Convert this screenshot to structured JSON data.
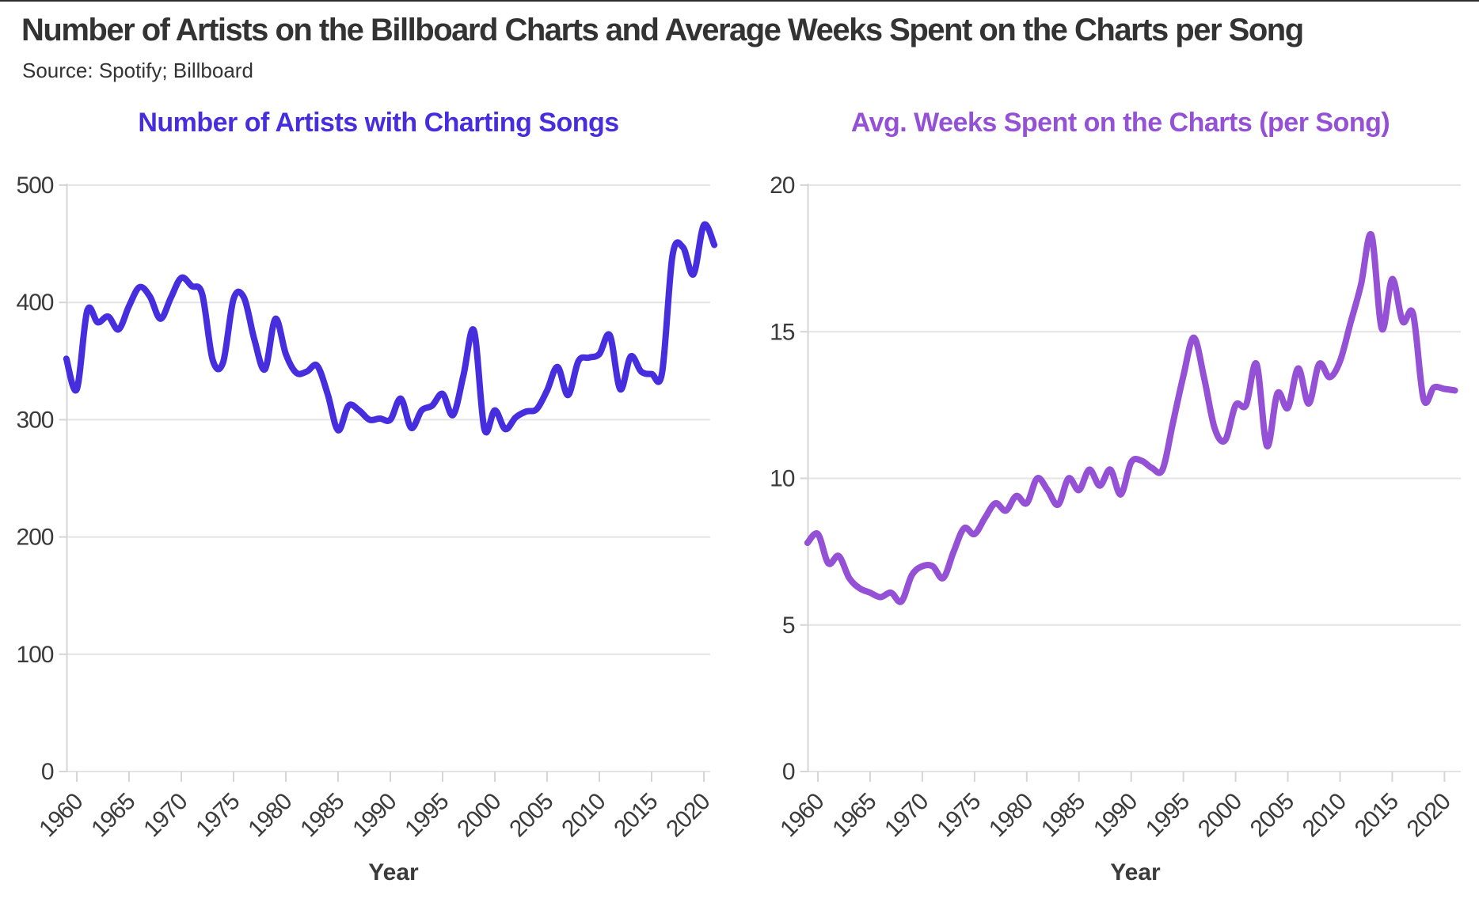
{
  "header": {
    "title": "Number of Artists on the Billboard Charts and Average Weeks Spent on the Charts per Song",
    "source": "Source: Spotify; Billboard"
  },
  "chart_data": [
    {
      "type": "line",
      "title": "Number of Artists with Charting Songs",
      "xlabel": "Year",
      "ylabel": "",
      "accent_color": "#462EDE",
      "grid": true,
      "legend": "none",
      "ylim": [
        0,
        500
      ],
      "yticks": [
        0,
        100,
        200,
        300,
        400,
        500
      ],
      "xticks": [
        1960,
        1965,
        1970,
        1975,
        1980,
        1985,
        1990,
        1995,
        2000,
        2005,
        2010,
        2015,
        2020
      ],
      "x": [
        1959,
        1960,
        1961,
        1962,
        1963,
        1964,
        1965,
        1966,
        1967,
        1968,
        1969,
        1970,
        1971,
        1972,
        1973,
        1974,
        1975,
        1976,
        1977,
        1978,
        1979,
        1980,
        1981,
        1982,
        1983,
        1984,
        1985,
        1986,
        1987,
        1988,
        1989,
        1990,
        1991,
        1992,
        1993,
        1994,
        1995,
        1996,
        1997,
        1998,
        1999,
        2000,
        2001,
        2002,
        2003,
        2004,
        2005,
        2006,
        2007,
        2008,
        2009,
        2010,
        2011,
        2012,
        2013,
        2014,
        2015,
        2016,
        2017,
        2018,
        2019,
        2020,
        2021
      ],
      "y": [
        352,
        326,
        393,
        383,
        388,
        377,
        397,
        413,
        405,
        386,
        404,
        421,
        414,
        407,
        351,
        349,
        403,
        404,
        368,
        343,
        386,
        356,
        340,
        341,
        346,
        322,
        291,
        312,
        308,
        300,
        301,
        300,
        318,
        293,
        308,
        312,
        322,
        304,
        338,
        376,
        292,
        308,
        292,
        302,
        307,
        309,
        325,
        345,
        321,
        350,
        353,
        356,
        372,
        326,
        354,
        341,
        339,
        340,
        440,
        447,
        424,
        466,
        449
      ]
    },
    {
      "type": "line",
      "title": "Avg. Weeks Spent on the Charts (per Song)",
      "xlabel": "Year",
      "ylabel": "",
      "accent_color": "#9451D5",
      "grid": true,
      "legend": "none",
      "ylim": [
        0,
        20
      ],
      "yticks": [
        0,
        5,
        10,
        15,
        20
      ],
      "xticks": [
        1960,
        1965,
        1970,
        1975,
        1980,
        1985,
        1990,
        1995,
        2000,
        2005,
        2010,
        2015,
        2020
      ],
      "x": [
        1959,
        1960,
        1961,
        1962,
        1963,
        1964,
        1965,
        1966,
        1967,
        1968,
        1969,
        1970,
        1971,
        1972,
        1973,
        1974,
        1975,
        1976,
        1977,
        1978,
        1979,
        1980,
        1981,
        1982,
        1983,
        1984,
        1985,
        1986,
        1987,
        1988,
        1989,
        1990,
        1991,
        1992,
        1993,
        1994,
        1995,
        1996,
        1997,
        1998,
        1999,
        2000,
        2001,
        2002,
        2003,
        2004,
        2005,
        2006,
        2007,
        2008,
        2009,
        2010,
        2011,
        2012,
        2013,
        2014,
        2015,
        2016,
        2017,
        2018,
        2019,
        2020,
        2021
      ],
      "y": [
        7.8,
        8.1,
        7.1,
        7.35,
        6.6,
        6.25,
        6.1,
        5.95,
        6.1,
        5.8,
        6.7,
        7.0,
        7.0,
        6.6,
        7.5,
        8.3,
        8.1,
        8.65,
        9.15,
        8.9,
        9.4,
        9.15,
        10.0,
        9.6,
        9.1,
        10.0,
        9.6,
        10.3,
        9.75,
        10.3,
        9.45,
        10.55,
        10.6,
        10.35,
        10.3,
        11.9,
        13.5,
        14.8,
        13.4,
        11.7,
        11.3,
        12.5,
        12.5,
        13.9,
        11.1,
        12.9,
        12.4,
        13.75,
        12.55,
        13.9,
        13.45,
        14.0,
        15.3,
        16.6,
        18.3,
        15.1,
        16.8,
        15.35,
        15.6,
        12.7,
        13.1,
        13.05,
        13.0
      ]
    }
  ],
  "style": {
    "gridline_color": "#e4e4e4",
    "axis_color": "#d6d6d6",
    "tick_label_color": "#3b3b3b",
    "title_color": "#333333"
  }
}
